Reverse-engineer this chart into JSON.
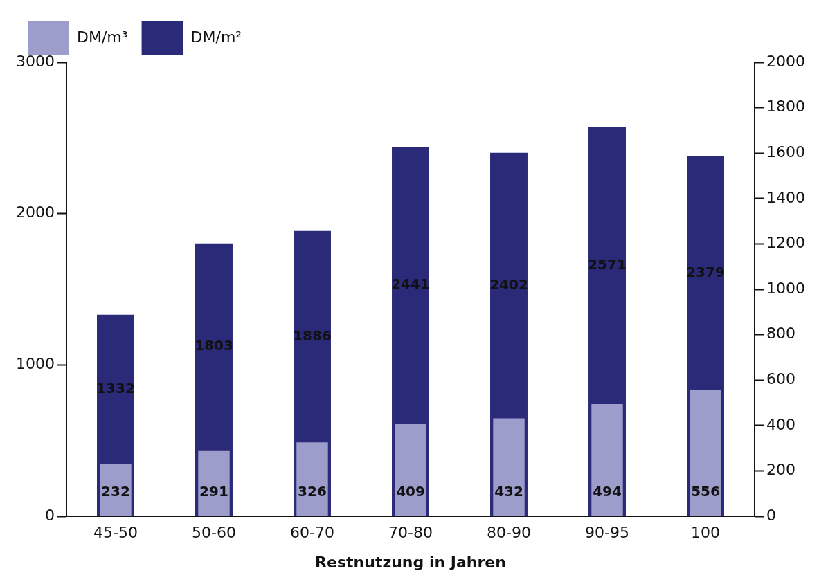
{
  "chart_data": {
    "type": "bar",
    "xlabel": "Restnutzung in Jahren",
    "categories": [
      "45-50",
      "50-60",
      "60-70",
      "70-80",
      "80-90",
      "90-95",
      "100"
    ],
    "series": [
      {
        "name": "DM/m²",
        "color": "#2b2a78",
        "values": [
          1332,
          1803,
          1886,
          2441,
          2402,
          2571,
          2379
        ]
      },
      {
        "name": "DM/m³",
        "color": "#9d9dcc",
        "axis": "y2",
        "values": [
          232,
          291,
          326,
          409,
          432,
          494,
          556
        ]
      }
    ],
    "ylim": [
      0,
      3000
    ],
    "yticks": [
      0,
      1000,
      2000,
      3000
    ],
    "y2lim": [
      0,
      2000
    ],
    "y2ticks": [
      0,
      200,
      400,
      600,
      800,
      1000,
      1200,
      1400,
      1600,
      1800,
      2000
    ],
    "data_labels": true,
    "grid": false,
    "legend": "top"
  }
}
